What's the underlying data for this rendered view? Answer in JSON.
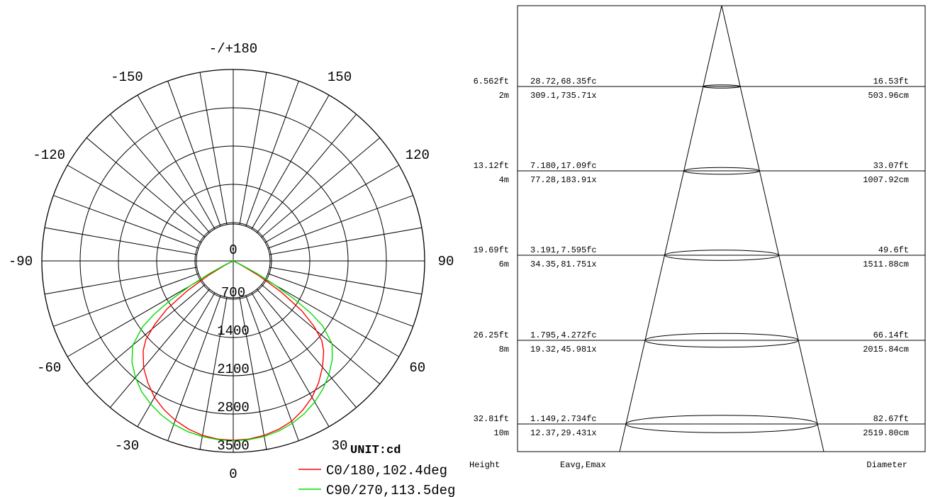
{
  "chart_data": [
    {
      "type": "polar",
      "unit_label": "UNIT:cd",
      "angle_labels": [
        "-/+180",
        "150",
        "120",
        "90",
        "60",
        "30",
        "0",
        "-30",
        "-60",
        "-90",
        "-120",
        "-150"
      ],
      "radial_labels": [
        "0",
        "700",
        "1400",
        "2100",
        "2800",
        "3500"
      ],
      "rlim": [
        0,
        3500
      ],
      "series": [
        {
          "name": "C0/180,102.4deg",
          "color": "#ff0000",
          "points": [
            [
              -63,
              160
            ],
            [
              -60,
              520
            ],
            [
              -57,
              1000
            ],
            [
              -54,
              1500
            ],
            [
              -51,
              1850
            ],
            [
              -48,
              2150
            ],
            [
              -45,
              2330
            ],
            [
              -40,
              2550
            ],
            [
              -35,
              2720
            ],
            [
              -30,
              2880
            ],
            [
              -25,
              3000
            ],
            [
              -20,
              3100
            ],
            [
              -15,
              3180
            ],
            [
              -10,
              3240
            ],
            [
              -5,
              3270
            ],
            [
              0,
              3280
            ],
            [
              5,
              3270
            ],
            [
              10,
              3240
            ],
            [
              15,
              3190
            ],
            [
              20,
              3120
            ],
            [
              25,
              3010
            ],
            [
              30,
              2880
            ],
            [
              35,
              2720
            ],
            [
              40,
              2540
            ],
            [
              45,
              2340
            ],
            [
              48,
              2180
            ],
            [
              51,
              1900
            ],
            [
              54,
              1550
            ],
            [
              57,
              1050
            ],
            [
              60,
              550
            ],
            [
              63,
              160
            ]
          ]
        },
        {
          "name": "C90/270,113.5deg",
          "color": "#00dd00",
          "points": [
            [
              -64,
              160
            ],
            [
              -62,
              480
            ],
            [
              -60,
              900
            ],
            [
              -58,
              1350
            ],
            [
              -56,
              1750
            ],
            [
              -54,
              2050
            ],
            [
              -50,
              2400
            ],
            [
              -45,
              2620
            ],
            [
              -40,
              2780
            ],
            [
              -35,
              2920
            ],
            [
              -30,
              3020
            ],
            [
              -25,
              3110
            ],
            [
              -20,
              3180
            ],
            [
              -15,
              3230
            ],
            [
              -10,
              3260
            ],
            [
              -5,
              3280
            ],
            [
              0,
              3290
            ],
            [
              5,
              3280
            ],
            [
              10,
              3260
            ],
            [
              15,
              3220
            ],
            [
              20,
              3160
            ],
            [
              25,
              3080
            ],
            [
              30,
              2980
            ],
            [
              35,
              2860
            ],
            [
              40,
              2720
            ],
            [
              45,
              2560
            ],
            [
              50,
              2360
            ],
            [
              54,
              2020
            ],
            [
              56,
              1720
            ],
            [
              58,
              1320
            ],
            [
              60,
              880
            ],
            [
              62,
              480
            ],
            [
              64,
              160
            ]
          ]
        }
      ]
    },
    {
      "type": "table",
      "column_headers": [
        "Height",
        "Eavg,Emax",
        "Diameter"
      ],
      "rows": [
        {
          "height_ft": "6.562ft",
          "height_m": "2m",
          "fc": "28.72,68.35fc",
          "lx": "309.1,735.71x",
          "diam_ft": "16.53ft",
          "diam_cm": "503.96cm"
        },
        {
          "height_ft": "13.12ft",
          "height_m": "4m",
          "fc": "7.180,17.09fc",
          "lx": "77.28,183.91x",
          "diam_ft": "33.07ft",
          "diam_cm": "1007.92cm"
        },
        {
          "height_ft": "19.69ft",
          "height_m": "6m",
          "fc": "3.191,7.595fc",
          "lx": "34.35,81.751x",
          "diam_ft": "49.6ft",
          "diam_cm": "1511.88cm"
        },
        {
          "height_ft": "26.25ft",
          "height_m": "8m",
          "fc": "1.795,4.272fc",
          "lx": "19.32,45.981x",
          "diam_ft": "66.14ft",
          "diam_cm": "2015.84cm"
        },
        {
          "height_ft": "32.81ft",
          "height_m": "10m",
          "fc": "1.149,2.734fc",
          "lx": "12.37,29.431x",
          "diam_ft": "82.67ft",
          "diam_cm": "2519.80cm"
        }
      ]
    }
  ]
}
